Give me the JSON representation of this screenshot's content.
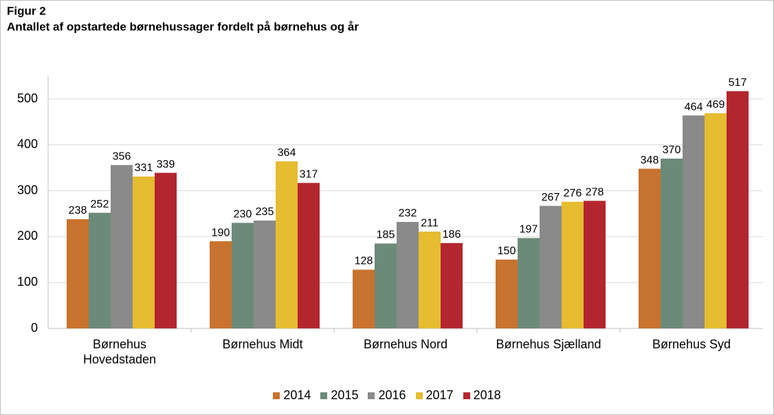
{
  "chart_data": {
    "type": "bar",
    "title": "Figur 2",
    "subtitle": "Antallet af opstartede børnehussager fordelt på børnehus og år",
    "categories": [
      "Børnehus\nHovedstaden",
      "Børnehus Midt",
      "Børnehus Nord",
      "Børnehus Sjælland",
      "Børnehus Syd"
    ],
    "series": [
      {
        "name": "2014",
        "color": "#c8732f",
        "values": [
          238,
          190,
          128,
          150,
          348
        ]
      },
      {
        "name": "2015",
        "color": "#6c8a78",
        "values": [
          252,
          230,
          185,
          197,
          370
        ]
      },
      {
        "name": "2016",
        "color": "#8a8a8a",
        "values": [
          356,
          235,
          232,
          267,
          464
        ]
      },
      {
        "name": "2017",
        "color": "#e6bc31",
        "values": [
          331,
          364,
          211,
          276,
          469
        ]
      },
      {
        "name": "2018",
        "color": "#b3262f",
        "values": [
          339,
          317,
          186,
          278,
          517
        ]
      }
    ],
    "ylim": [
      0,
      550
    ],
    "yticks": [
      0,
      100,
      200,
      300,
      400,
      500
    ],
    "grid": true,
    "legend": "bottom"
  }
}
